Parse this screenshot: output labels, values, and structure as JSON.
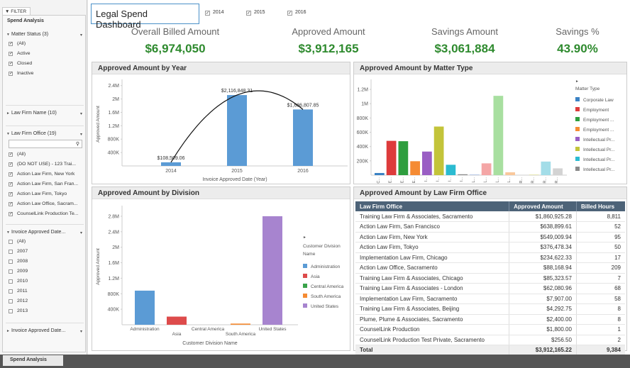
{
  "sidebar": {
    "tab_label": "FILTER",
    "title": "Spend Analysis",
    "matter_status": {
      "label": "Matter Status (3)",
      "options": [
        {
          "label": "(All)",
          "checked": true
        },
        {
          "label": "Active",
          "checked": true
        },
        {
          "label": "Closed",
          "checked": true
        },
        {
          "label": "Inactive",
          "checked": true
        }
      ]
    },
    "law_firm_name": {
      "label": "Law Firm Name (10)"
    },
    "law_firm_office": {
      "label": "Law Firm Office (19)",
      "options": [
        {
          "label": "(All)",
          "checked": true
        },
        {
          "label": "(DO NOT USE) - 123 Trai...",
          "checked": true
        },
        {
          "label": "Action Law Firm, New York",
          "checked": true
        },
        {
          "label": "Action Law Firm, San Fran...",
          "checked": true
        },
        {
          "label": "Action Law Firm, Tokyo",
          "checked": true
        },
        {
          "label": "Action Law Office, Sacram...",
          "checked": true
        },
        {
          "label": "CounselLink Production Te...",
          "checked": true
        }
      ]
    },
    "invoice_date_1": {
      "label": "Invoice Approved Date...",
      "options": [
        {
          "label": "(All)",
          "checked": false
        },
        {
          "label": "2007",
          "checked": false
        },
        {
          "label": "2008",
          "checked": false
        },
        {
          "label": "2009",
          "checked": false
        },
        {
          "label": "2010",
          "checked": false
        },
        {
          "label": "2011",
          "checked": false
        },
        {
          "label": "2012",
          "checked": false
        },
        {
          "label": "2013",
          "checked": false
        }
      ]
    },
    "invoice_date_2": {
      "label": "Invoice Approved Date..."
    }
  },
  "header": {
    "title": "Legal Spend Dashboard",
    "years": [
      {
        "label": "2014",
        "checked": true
      },
      {
        "label": "2015",
        "checked": true
      },
      {
        "label": "2016",
        "checked": true
      }
    ]
  },
  "kpis": [
    {
      "label": "Overall Billed Amount",
      "value": "$6,974,050"
    },
    {
      "label": "Approved Amount",
      "value": "$3,912,165"
    },
    {
      "label": "Savings Amount",
      "value": "$3,061,884"
    },
    {
      "label": "Savings %",
      "value": "43.90%"
    }
  ],
  "chart_data": [
    {
      "type": "bar",
      "title": "Approved Amount by Year",
      "xlabel": "Invoice Approved Date (Year)",
      "ylabel": "Approved Amount",
      "categories": [
        "2014",
        "2015",
        "2016"
      ],
      "values": [
        108509.06,
        2116848.31,
        1686807.85
      ],
      "data_labels": [
        "$108,509.06",
        "$2,116,848.31",
        "$1,686,807.85"
      ],
      "ylim": [
        0,
        2500000
      ],
      "yticks": [
        "400K",
        "800K",
        "1.2M",
        "1.6M",
        "2M",
        "2.4M"
      ],
      "color": "#5b9bd5",
      "trend_line": true
    },
    {
      "type": "bar",
      "title": "Approved Amount by Matter Type",
      "legend_title": "Matter Type",
      "legend": [
        "Corporate Law",
        "Employment",
        "Employment ...",
        "Employment ...",
        "Intellectual Pr...",
        "Intellectual Pr...",
        "Intellectual Pr...",
        "Intellectual Pr..."
      ],
      "values": [
        30000,
        480000,
        475000,
        195000,
        330000,
        680000,
        145000,
        12000,
        10000,
        165000,
        1110000,
        40000,
        0,
        8000,
        190000,
        95000
      ],
      "colors": [
        "#3a82c4",
        "#dd3b3b",
        "#2e9e3e",
        "#f58b33",
        "#9a5ec4",
        "#c3c43a",
        "#2bbbd1",
        "#8a8a8a",
        "#b7c9e6",
        "#f4a6a6",
        "#a8dfa0",
        "#f9c89c",
        "#c9b4e0",
        "#e3e3a3",
        "#a3dde8",
        "#d3d3d3"
      ],
      "tick_labels": [
        "C...",
        "E...",
        "E...",
        "E...",
        "I...",
        "I...",
        "I...",
        "I...",
        "L...",
        "L...",
        "L...",
        "L...",
        "R...",
        "R...",
        "R...",
        "R..."
      ],
      "ylim": [
        0,
        1300000
      ],
      "yticks": [
        "200K",
        "400K",
        "600K",
        "800K",
        "1M",
        "1.2M"
      ]
    },
    {
      "type": "bar",
      "title": "Approved Amount by Division",
      "xlabel": "Customer Division Name",
      "ylabel": "Approved Amount",
      "legend_title": "Customer Division Name",
      "categories": [
        "Administration",
        "Asia",
        "Central America",
        "South America",
        "United States"
      ],
      "values": [
        880000,
        210000,
        0,
        30000,
        2800000
      ],
      "colors": [
        "#5b9bd5",
        "#dd4b4b",
        "#3aa34a",
        "#f58b33",
        "#a784cf"
      ],
      "ylim": [
        0,
        3000000
      ],
      "yticks": [
        "400K",
        "800K",
        "1.2M",
        "1.6M",
        "2M",
        "2.4M",
        "2.8M"
      ]
    },
    {
      "type": "table",
      "title": "Approved Amount by Law Firm Office",
      "columns": [
        "Law Firm Office",
        "Approved Amount",
        "Billed Hours"
      ],
      "rows": [
        [
          "Training Law Firm & Associates, Sacramento",
          "$1,860,925.28",
          "8,811"
        ],
        [
          "Action Law Firm, San Francisco",
          "$638,899.61",
          "52"
        ],
        [
          "Action Law Firm, New York",
          "$549,009.94",
          "95"
        ],
        [
          "Action Law Firm, Tokyo",
          "$376,478.34",
          "50"
        ],
        [
          "Implementation Law Firm, Chicago",
          "$234,622.33",
          "17"
        ],
        [
          "Action Law Office, Sacramento",
          "$88,168.94",
          "209"
        ],
        [
          "Training Law Firm & Associates, Chicago",
          "$85,323.57",
          "7"
        ],
        [
          "Training Law Firm & Associates - London",
          "$62,080.96",
          "68"
        ],
        [
          "Implementation Law Firm, Sacramento",
          "$7,907.00",
          "58"
        ],
        [
          "Training Law Firm & Associates, Beijing",
          "$4,292.75",
          "8"
        ],
        [
          "Plume, Plume & Associates, Sacramento",
          "$2,400.00",
          "8"
        ],
        [
          "CounselLink Production",
          "$1,800.00",
          "1"
        ],
        [
          "CounselLink Production Test Private, Sacramento",
          "$256.50",
          "2"
        ]
      ],
      "total": [
        "Total",
        "$3,912,165.22",
        "9,384"
      ]
    }
  ],
  "bottom_tab": "Spend Analysis"
}
